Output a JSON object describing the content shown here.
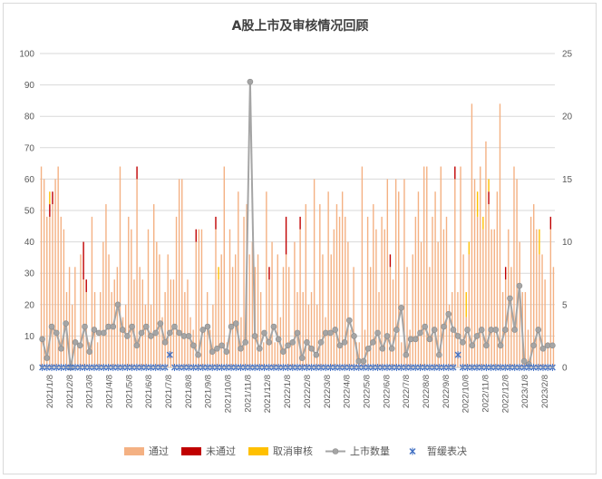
{
  "chart_data": {
    "type": "bar",
    "title": "A股上市及审核情况回顾",
    "left_axis": {
      "ylim": [
        0,
        100
      ],
      "ticks": [
        "0",
        "10",
        "20",
        "30",
        "40",
        "50",
        "60",
        "70",
        "80",
        "90",
        "100"
      ]
    },
    "right_axis": {
      "ylim": [
        0,
        25
      ],
      "ticks": [
        "0",
        "5",
        "10",
        "15",
        "20",
        "25"
      ]
    },
    "x_tick_labels": [
      "2021/1/8",
      "2021/2/8",
      "2021/3/8",
      "2021/4/8",
      "2021/5/8",
      "2021/6/8",
      "2021/7/8",
      "2021/8/8",
      "2021/9/8",
      "2021/10/8",
      "2021/11/8",
      "2021/12/8",
      "2022/1/8",
      "2022/2/8",
      "2022/3/8",
      "2022/4/8",
      "2022/5/8",
      "2022/6/8",
      "2022/7/8",
      "2022/8/8",
      "2022/9/8",
      "2022/10/8",
      "2022/11/8",
      "2022/12/8",
      "2023/1/8",
      "2023/2/8"
    ],
    "grid": "horizontal",
    "legend_position": "bottom",
    "legend": [
      {
        "name": "通过",
        "kind": "bar",
        "color": "#f4b183"
      },
      {
        "name": "未通过",
        "kind": "bar",
        "color": "#c00000"
      },
      {
        "name": "取消审核",
        "kind": "bar",
        "color": "#ffc000"
      },
      {
        "name": "上市数量",
        "kind": "line",
        "color": "#a5a5a5"
      },
      {
        "name": "暂缓表决",
        "kind": "marker",
        "color": "#4472c4"
      }
    ],
    "series": [
      {
        "name": "通过",
        "axis": "right",
        "values": [
          16,
          15,
          12,
          12,
          13,
          15,
          16,
          12,
          11,
          6,
          8,
          5,
          8,
          2,
          9,
          7,
          6,
          2,
          12,
          6,
          2,
          6,
          10,
          13,
          9,
          6,
          7,
          8,
          16,
          4,
          5,
          12,
          11,
          7,
          15,
          8,
          7,
          5,
          11,
          5,
          13,
          10,
          9,
          4,
          6,
          9,
          7,
          7,
          12,
          15,
          15,
          6,
          7,
          4,
          3,
          10,
          11,
          11,
          3,
          6,
          3,
          5,
          11,
          7,
          9,
          16,
          2,
          11,
          8,
          9,
          14,
          4,
          12,
          13,
          9,
          10,
          8,
          9,
          6,
          2,
          14,
          7,
          10,
          2,
          9,
          4,
          8,
          9,
          8,
          2,
          10,
          6,
          11,
          6,
          13,
          5,
          6,
          15,
          5,
          13,
          9,
          4,
          14,
          9,
          11,
          13,
          12,
          14,
          12,
          10,
          3,
          8,
          2,
          2,
          16,
          3,
          12,
          8,
          13,
          11,
          6,
          12,
          11,
          15,
          8,
          7,
          15,
          14,
          2,
          15,
          8,
          3,
          9,
          12,
          14,
          10,
          16,
          16,
          8,
          12,
          14,
          10,
          16,
          11,
          12,
          5,
          6,
          15,
          6,
          16,
          9,
          4,
          9,
          21,
          15,
          12,
          16,
          11,
          18,
          13,
          11,
          11,
          14,
          21,
          6,
          7,
          11,
          8,
          16,
          15,
          10,
          6,
          6,
          3,
          12,
          13,
          11,
          9,
          9,
          7,
          2,
          11,
          8
        ],
        "values_note": "values in right-axis units"
      },
      {
        "name": "未通过",
        "axis": "right",
        "values": [
          0,
          0,
          0,
          1,
          1,
          0,
          0,
          0,
          0,
          0,
          0,
          0,
          0,
          0,
          0,
          3,
          1,
          0,
          0,
          0,
          0,
          0,
          0,
          0,
          0,
          0,
          0,
          0,
          0,
          0,
          0,
          0,
          0,
          0,
          1,
          0,
          0,
          0,
          0,
          0,
          0,
          0,
          0,
          0,
          0,
          0,
          0,
          0,
          0,
          0,
          0,
          0,
          0,
          0,
          0,
          1,
          0,
          0,
          0,
          0,
          0,
          0,
          1,
          0,
          0,
          0,
          0,
          0,
          0,
          0,
          0,
          0,
          0,
          0,
          0,
          0,
          0,
          0,
          0,
          0,
          0,
          1,
          0,
          0,
          0,
          0,
          0,
          3,
          0,
          0,
          0,
          0,
          1,
          0,
          0,
          0,
          0,
          0,
          0,
          0,
          0,
          0,
          0,
          0,
          0,
          0,
          0,
          0,
          0,
          0,
          0,
          0,
          0,
          0,
          0,
          0,
          0,
          0,
          0,
          0,
          0,
          0,
          0,
          0,
          1,
          0,
          0,
          0,
          0,
          0,
          0,
          0,
          0,
          0,
          0,
          0,
          0,
          0,
          0,
          0,
          0,
          0,
          0,
          0,
          0,
          0,
          0,
          1,
          0,
          0,
          0,
          0,
          0,
          0,
          0,
          0,
          0,
          0,
          0,
          1,
          0,
          0,
          0,
          0,
          0,
          1,
          0,
          0,
          0,
          0,
          0,
          0,
          0,
          0,
          0,
          0,
          0,
          0,
          0,
          0,
          0,
          1,
          0,
          0,
          0,
          0,
          0
        ]
      },
      {
        "name": "取消审核",
        "axis": "right",
        "values": [
          0,
          0,
          0,
          1,
          0,
          0,
          0,
          0,
          0,
          0,
          0,
          0,
          0,
          0,
          0,
          0,
          0,
          0,
          0,
          0,
          0,
          0,
          0,
          0,
          0,
          0,
          0,
          0,
          0,
          0,
          0,
          0,
          0,
          0,
          0,
          0,
          0,
          0,
          0,
          0,
          0,
          0,
          0,
          0,
          0,
          0,
          0,
          0,
          0,
          0,
          0,
          0,
          0,
          0,
          0,
          0,
          0,
          0,
          0,
          0,
          0,
          0,
          0,
          1,
          0,
          0,
          0,
          0,
          0,
          0,
          0,
          0,
          0,
          0,
          0,
          0,
          0,
          0,
          0,
          0,
          0,
          0,
          0,
          0,
          0,
          0,
          0,
          0,
          0,
          0,
          0,
          0,
          0,
          0,
          0,
          0,
          0,
          0,
          0,
          0,
          0,
          0,
          0,
          0,
          0,
          0,
          0,
          0,
          0,
          0,
          0,
          0,
          0,
          0,
          0,
          0,
          0,
          0,
          0,
          0,
          0,
          0,
          0,
          0,
          0,
          0,
          0,
          0,
          0,
          0,
          0,
          0,
          0,
          0,
          0,
          0,
          0,
          0,
          0,
          0,
          0,
          0,
          0,
          0,
          0,
          0,
          0,
          0,
          0,
          0,
          0,
          2,
          1,
          0,
          0,
          2,
          0,
          1,
          0,
          1,
          0,
          0,
          0,
          0,
          0,
          0,
          0,
          0,
          0,
          0,
          0,
          0,
          0,
          0,
          0,
          0,
          0,
          2,
          0,
          0,
          0,
          0,
          0
        ]
      },
      {
        "name": "上市数量",
        "axis": "left",
        "values": [
          9,
          3,
          13,
          11,
          6,
          14,
          0,
          8,
          7,
          13,
          5,
          12,
          11,
          11,
          13,
          13,
          20,
          12,
          10,
          13,
          7,
          11,
          13,
          10,
          11,
          14,
          8,
          11,
          13,
          11,
          10,
          10,
          7,
          4,
          12,
          13,
          5,
          6,
          7,
          5,
          13,
          14,
          6,
          8,
          91,
          10,
          6,
          11,
          8,
          13,
          9,
          5,
          7,
          8,
          11,
          3,
          8,
          6,
          4,
          8,
          11,
          11,
          12,
          7,
          8,
          15,
          10,
          2,
          2,
          6,
          8,
          11,
          6,
          10,
          6,
          12,
          19,
          4,
          9,
          9,
          11,
          13,
          9,
          12,
          4,
          13,
          17,
          12,
          10,
          8,
          12,
          7,
          10,
          12,
          7,
          12,
          12,
          7,
          12,
          22,
          12,
          26,
          2,
          1,
          7,
          12,
          6,
          7,
          7
        ]
      },
      {
        "name": "暂缓表决",
        "axis": "right",
        "values": [
          0,
          0,
          0,
          0,
          0,
          0,
          0,
          0,
          0,
          0,
          0,
          0,
          0,
          0,
          0,
          0,
          0,
          0,
          0,
          0,
          0,
          0,
          0,
          0,
          0,
          0,
          0,
          1,
          0,
          0,
          0,
          0,
          0,
          0,
          0,
          0,
          0,
          0,
          0,
          0,
          0,
          0,
          0,
          0,
          0,
          0,
          0,
          0,
          0,
          0,
          0,
          0,
          0,
          0,
          0,
          0,
          0,
          0,
          0,
          0,
          0,
          0,
          0,
          0,
          0,
          0,
          0,
          0,
          0,
          0,
          0,
          0,
          0,
          0,
          0,
          0,
          0,
          0,
          0,
          0,
          0,
          0,
          0,
          0,
          0,
          0,
          0,
          0,
          1,
          0,
          0,
          0,
          0,
          0,
          0,
          0,
          0,
          0,
          0,
          0,
          0,
          0,
          0,
          0,
          0,
          0,
          0,
          0,
          0
        ]
      }
    ]
  }
}
